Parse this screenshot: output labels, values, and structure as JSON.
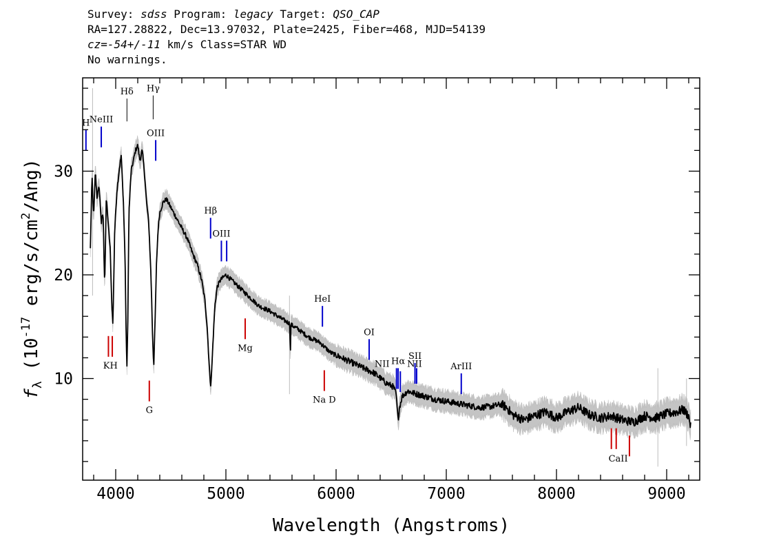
{
  "header": {
    "line1": {
      "survey_label": "Survey: ",
      "survey": "sdss",
      "program_label": " Program: ",
      "program": "legacy",
      "target_label": " Target: ",
      "target": "QSO_CAP"
    },
    "line2": "RA=127.28822, Dec=13.97032, Plate=2425, Fiber=468, MJD=54139",
    "line3": {
      "cz": "cz=-54+/-11",
      "rest": " km/s Class=STAR WD"
    },
    "line4": "No warnings."
  },
  "chart_data": {
    "type": "line",
    "title": "",
    "xlabel": "Wavelength (Angstroms)",
    "ylabel": "fλ (10^-17 erg/s/cm^2/Ang)",
    "ylabel_prefix": "f",
    "ylabel_sub": "λ",
    "ylabel_main": " (10",
    "ylabel_sup1": "-17",
    "ylabel_mid": " erg/s/cm",
    "ylabel_sup2": "2",
    "ylabel_end": "/Ang)",
    "xlim": [
      3700,
      9300
    ],
    "ylim": [
      0.2,
      39
    ],
    "xticks": [
      4000,
      5000,
      6000,
      7000,
      8000,
      9000
    ],
    "yticks": [
      10,
      20,
      30
    ],
    "series": [
      {
        "color": "#000000",
        "x": [
          3770,
          3785,
          3800,
          3815,
          3830,
          3850,
          3870,
          3885,
          3900,
          3915,
          3935,
          3950,
          3965,
          3975,
          3990,
          4010,
          4030,
          4050,
          4070,
          4085,
          4095,
          4102,
          4110,
          4120,
          4140,
          4160,
          4180,
          4200,
          4220,
          4240,
          4260,
          4280,
          4300,
          4320,
          4335,
          4345,
          4355,
          4370,
          4385,
          4400,
          4430,
          4460,
          4500,
          4550,
          4600,
          4650,
          4700,
          4740,
          4780,
          4810,
          4830,
          4845,
          4855,
          4862,
          4870,
          4885,
          4900,
          4920,
          4950,
          5000,
          5050,
          5100,
          5150,
          5200,
          5300,
          5400,
          5500,
          5580,
          5585,
          5590,
          5650,
          5750,
          5850,
          5950,
          6050,
          6150,
          6250,
          6350,
          6450,
          6520,
          6545,
          6555,
          6563,
          6575,
          6600,
          6650,
          6700,
          6800,
          6900,
          7000,
          7100,
          7200,
          7300,
          7400,
          7500,
          7550,
          7600,
          7650,
          7700,
          7800,
          7900,
          8000,
          8100,
          8200,
          8300,
          8400,
          8500,
          8600,
          8700,
          8800,
          8900,
          9000,
          9100,
          9150,
          9200,
          9220
        ],
        "y": [
          22.5,
          29.5,
          25.5,
          30.0,
          27.5,
          28.5,
          25.0,
          26.0,
          19.0,
          27.5,
          24.5,
          22.5,
          17.0,
          15.2,
          24.0,
          28.0,
          30.0,
          31.5,
          27.0,
          21.5,
          14.0,
          11.2,
          15.5,
          26.0,
          30.0,
          31.0,
          32.0,
          32.5,
          31.0,
          32.0,
          30.0,
          27.0,
          25.0,
          20.0,
          14.0,
          11.2,
          14.5,
          21.0,
          24.5,
          26.0,
          27.0,
          27.3,
          26.5,
          25.5,
          24.5,
          23.5,
          22.0,
          21.0,
          19.5,
          17.5,
          15.0,
          12.0,
          10.0,
          9.5,
          10.5,
          14.0,
          17.0,
          18.8,
          19.5,
          20.0,
          19.5,
          19.0,
          18.5,
          18.0,
          17.0,
          16.5,
          15.8,
          15.3,
          12.0,
          15.2,
          14.8,
          14.0,
          13.5,
          12.5,
          12.0,
          11.5,
          11.0,
          10.5,
          9.6,
          9.2,
          8.5,
          7.0,
          6.0,
          7.2,
          8.3,
          8.8,
          8.6,
          8.3,
          8.0,
          7.8,
          7.6,
          7.4,
          7.2,
          7.3,
          7.5,
          7.2,
          6.5,
          6.3,
          6.0,
          6.4,
          6.8,
          6.2,
          6.8,
          7.2,
          6.5,
          6.2,
          6.4,
          6.0,
          5.8,
          6.4,
          6.2,
          6.6,
          6.8,
          7.0,
          6.4,
          5.2
        ]
      }
    ],
    "line_markers": [
      {
        "label": "Hδ",
        "x": 4102,
        "color": "#000000",
        "ymin": 34.8,
        "ymax": 37.0,
        "label_pos": "above"
      },
      {
        "label": "Hγ",
        "x": 4340,
        "color": "#000000",
        "ymin": 35.0,
        "ymax": 37.3,
        "label_pos": "above"
      },
      {
        "label": "H",
        "x": 3730,
        "color": "#0000cc",
        "ymin": 32.0,
        "ymax": 34.0,
        "label_pos": "above"
      },
      {
        "label": "NeIII",
        "x": 3869,
        "color": "#0000cc",
        "ymin": 32.3,
        "ymax": 34.3,
        "label_pos": "above"
      },
      {
        "label": "OIII",
        "x": 4363,
        "color": "#0000cc",
        "ymin": 31.0,
        "ymax": 33.0,
        "label_pos": "above"
      },
      {
        "label": "Hβ",
        "x": 4861,
        "color": "#0000cc",
        "ymin": 23.5,
        "ymax": 25.5,
        "label_pos": "above"
      },
      {
        "label": "OIII",
        "x": 4959,
        "color": "#0000cc",
        "ymin": 21.3,
        "ymax": 23.3,
        "label_pos": "above"
      },
      {
        "label": "",
        "x": 5007,
        "color": "#0000cc",
        "ymin": 21.3,
        "ymax": 23.3,
        "label_pos": "above"
      },
      {
        "label": "HeI",
        "x": 5876,
        "color": "#0000cc",
        "ymin": 15.0,
        "ymax": 17.0,
        "label_pos": "above"
      },
      {
        "label": "OI",
        "x": 6300,
        "color": "#0000cc",
        "ymin": 11.8,
        "ymax": 13.8,
        "label_pos": "above"
      },
      {
        "label": "NII",
        "x": 6548,
        "color": "#0000cc",
        "ymin": 9.0,
        "ymax": 11.0,
        "label_pos": "leftup"
      },
      {
        "label": "Hα",
        "x": 6563,
        "color": "#0000cc",
        "ymin": 9.0,
        "ymax": 11.0,
        "label_pos": "above"
      },
      {
        "label": "",
        "x": 6583,
        "color": "#0000cc",
        "ymin": 8.7,
        "ymax": 10.7,
        "label_pos": "above"
      },
      {
        "label": "SII",
        "x": 6716,
        "color": "#0000cc",
        "ymin": 9.5,
        "ymax": 11.5,
        "label_pos": "above"
      },
      {
        "label": "NII",
        "x": 6731,
        "color": "#0000cc",
        "ymin": 9.5,
        "ymax": 11.0,
        "label_pos": "nii2"
      },
      {
        "label": "ArIII",
        "x": 7136,
        "color": "#0000cc",
        "ymin": 8.5,
        "ymax": 10.5,
        "label_pos": "above"
      },
      {
        "label": "KH",
        "x": 3934,
        "color": "#cc0000",
        "ymin": 12.1,
        "ymax": 14.1,
        "label_pos": "kh"
      },
      {
        "label": "",
        "x": 3969,
        "color": "#cc0000",
        "ymin": 12.1,
        "ymax": 14.1,
        "label_pos": "below"
      },
      {
        "label": "G",
        "x": 4305,
        "color": "#cc0000",
        "ymin": 7.8,
        "ymax": 9.8,
        "label_pos": "below"
      },
      {
        "label": "Mg",
        "x": 5175,
        "color": "#cc0000",
        "ymin": 13.8,
        "ymax": 15.8,
        "label_pos": "below"
      },
      {
        "label": "Na  D",
        "x": 5893,
        "color": "#cc0000",
        "ymin": 8.8,
        "ymax": 10.8,
        "label_pos": "below"
      },
      {
        "label": "CaII",
        "x": 8498,
        "color": "#cc0000",
        "ymin": 3.2,
        "ymax": 5.2,
        "label_pos": "none"
      },
      {
        "label": "",
        "x": 8542,
        "color": "#cc0000",
        "ymin": 3.2,
        "ymax": 5.2,
        "label_pos": "none"
      },
      {
        "label": "",
        "x": 8662,
        "color": "#cc0000",
        "ymin": 2.5,
        "ymax": 4.5,
        "label_pos": "none"
      }
    ],
    "caii_label": "CaII",
    "caii_x": 8560,
    "caii_y": 2.0
  }
}
